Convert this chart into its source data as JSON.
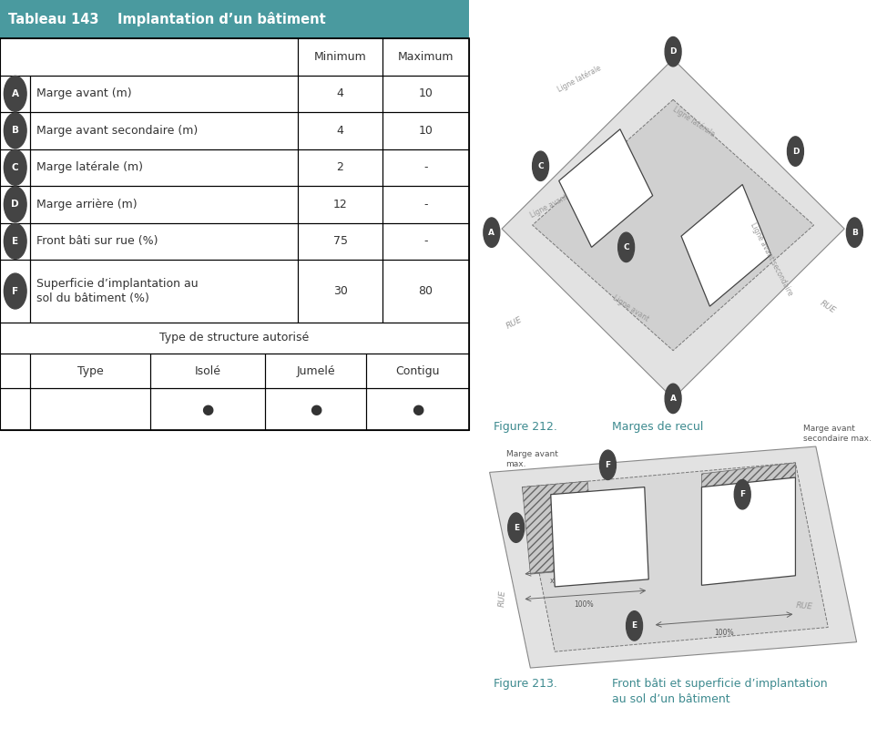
{
  "title": "Tableau 143    Implantation d’un bâtiment",
  "title_bg": "#4a9a9f",
  "title_color": "#ffffff",
  "rows": [
    {
      "label": "Marge avant (m)",
      "min": "4",
      "max": "10",
      "badge": "A"
    },
    {
      "label": "Marge avant secondaire (m)",
      "min": "4",
      "max": "10",
      "badge": "B"
    },
    {
      "label": "Marge latérale (m)",
      "min": "2",
      "max": "-",
      "badge": "C"
    },
    {
      "label": "Marge arrière (m)",
      "min": "12",
      "max": "-",
      "badge": "D"
    },
    {
      "label": "Front bâti sur rue (%)",
      "min": "75",
      "max": "-",
      "badge": "E"
    },
    {
      "label": "Superficie d’implantation au\nsol du bâtiment (%)",
      "min": "30",
      "max": "80",
      "badge": "F"
    }
  ],
  "struct_title": "Type de structure autorisé",
  "struct_headers": [
    "Type",
    "Isolé",
    "Jumelé",
    "Contigu"
  ],
  "fig212_title": "Figure 212.",
  "fig212_caption": "Marges de recul",
  "fig213_title": "Figure 213.",
  "fig213_caption": "Front bâti et superficie d’implantation\nau sol d’un bâtiment",
  "caption_color": "#3d8a8f",
  "text_color": "#333333",
  "badge_bg": "#444444",
  "badge_color": "#ffffff",
  "outer_fill": "#e2e2e2",
  "inner_fill": "#d0d0d0",
  "hatch_fill": "#c0c0c0",
  "building_fill": "#ffffff",
  "line_color": "#888888",
  "dashed_color": "#777777"
}
